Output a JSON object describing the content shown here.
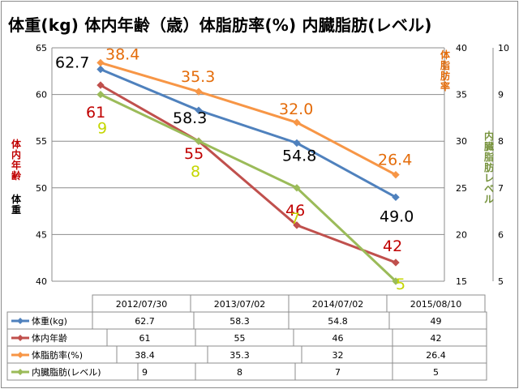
{
  "title": "体重(kg) 体内年齢（歳）体脂肪率(%) 内臓脂肪(レベル)",
  "chart_data": {
    "type": "line",
    "categories": [
      "2012/07/30",
      "2013/07/02",
      "2014/07/02",
      "2015/08/10"
    ],
    "axes": {
      "left_weight": {
        "label": "体重",
        "min": 40,
        "max": 65,
        "step": 5,
        "ticks": [
          "40",
          "45",
          "50",
          "55",
          "60",
          "65"
        ]
      },
      "left_age": {
        "label": "体内年齢"
      },
      "right_fat": {
        "label": "体脂肪率",
        "min": 15,
        "max": 40,
        "step": 5,
        "ticks": [
          "15",
          "20",
          "25",
          "30",
          "35",
          "40"
        ]
      },
      "right_visceral": {
        "label": "内臓脂肪レベル",
        "min": 5,
        "max": 10,
        "step": 1,
        "ticks": [
          "5",
          "6",
          "7",
          "8",
          "9",
          "10"
        ]
      }
    },
    "series": [
      {
        "name": "体重(kg)",
        "axis": "left_weight",
        "color": "#4f81bd",
        "values": [
          62.7,
          58.3,
          54.8,
          49.0
        ],
        "labels": [
          "62.7",
          "58.3",
          "54.8",
          "49.0"
        ],
        "label_color": "#000000",
        "table": [
          "62.7",
          "58.3",
          "54.8",
          "49"
        ]
      },
      {
        "name": "体内年齢",
        "axis": "left_weight",
        "color": "#c0504d",
        "values": [
          61,
          55,
          46,
          42
        ],
        "labels": [
          "61",
          "55",
          "46",
          "42"
        ],
        "label_color": "#c00000",
        "table": [
          "61",
          "55",
          "46",
          "42"
        ]
      },
      {
        "name": "体脂肪率(%)",
        "axis": "right_fat",
        "color": "#f79646",
        "values": [
          38.4,
          35.3,
          32.0,
          26.4
        ],
        "labels": [
          "38.4",
          "35.3",
          "32.0",
          "26.4"
        ],
        "label_color": "#e46c0a",
        "table": [
          "38.4",
          "35.3",
          "32",
          "26.4"
        ]
      },
      {
        "name": "内臓脂肪(レベル)",
        "axis": "right_visceral",
        "color": "#9bbb59",
        "values": [
          9,
          8,
          7,
          5
        ],
        "labels": [
          "9",
          "8",
          "7",
          "5"
        ],
        "label_color": "#c4d600",
        "table": [
          "9",
          "8",
          "7",
          "5"
        ]
      }
    ],
    "axis_colors": {
      "left_weight": "#000000",
      "left_age": "#c00000",
      "right_fat": "#e46c0a",
      "right_visceral": "#76923c"
    }
  }
}
